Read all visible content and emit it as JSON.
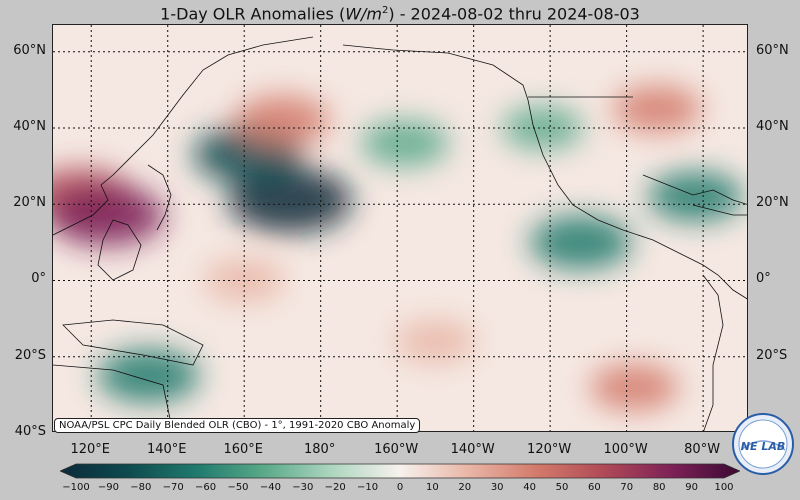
{
  "title": {
    "prefix": "1-Day OLR Anomalies (",
    "unit_var": "W/m",
    "unit_exp": "2",
    "suffix": ") - 2024-08-02 thru 2024-08-03"
  },
  "credit": "NOAA/PSL CPC Daily Blended OLR (CBO) - 1°, 1991-2020 CBO Anomaly",
  "map": {
    "lat_labels": [
      "60°N",
      "40°N",
      "20°N",
      "0°",
      "20°S",
      "40°S"
    ],
    "lat_values": [
      60,
      40,
      20,
      0,
      -20,
      -40
    ],
    "lon_labels": [
      "120°E",
      "140°E",
      "160°E",
      "180°",
      "160°W",
      "140°W",
      "120°W",
      "100°W",
      "80°W"
    ],
    "lon_values": [
      120,
      140,
      160,
      180,
      200,
      220,
      240,
      260,
      280
    ],
    "extent": {
      "lon_min": 110,
      "lon_max": 292,
      "lat_min": -40,
      "lat_max": 67
    },
    "anomalies": [
      {
        "name": "ne-japan",
        "lon": 117,
        "lat": 22,
        "value": 70
      },
      {
        "name": "philippine-sea",
        "lon": 124,
        "lat": 17,
        "value": 80
      },
      {
        "name": "central-n-pacific",
        "lon": 172,
        "lat": 21,
        "value": -90
      },
      {
        "name": "mid-pacific-w",
        "lon": 161,
        "lat": 33,
        "value": -70
      },
      {
        "name": "nw-pacific-north",
        "lon": 170,
        "lat": 42,
        "value": 50
      },
      {
        "name": "gulf-alaska",
        "lon": 202,
        "lat": 36,
        "value": -40
      },
      {
        "name": "e-pacific-itcz",
        "lon": 248,
        "lat": 10,
        "value": -60
      },
      {
        "name": "caribbean",
        "lon": 278,
        "lat": 22,
        "value": -50
      },
      {
        "name": "s-pacific-west",
        "lon": 135,
        "lat": -25,
        "value": -60
      },
      {
        "name": "s-pacific-east",
        "lon": 262,
        "lat": -28,
        "value": 40
      },
      {
        "name": "equatorial-w",
        "lon": 160,
        "lat": 0,
        "value": 30
      },
      {
        "name": "n-america",
        "lon": 268,
        "lat": 45,
        "value": 40
      },
      {
        "name": "south-central",
        "lon": 210,
        "lat": -16,
        "value": 30
      },
      {
        "name": "w-coast-na",
        "lon": 238,
        "lat": 40,
        "value": -30
      }
    ]
  },
  "colorbar": {
    "ticks": [
      "−100",
      "−90",
      "−80",
      "−70",
      "−60",
      "−50",
      "−40",
      "−30",
      "−20",
      "−10",
      "0",
      "10",
      "20",
      "30",
      "40",
      "50",
      "60",
      "70",
      "80",
      "90",
      "100"
    ],
    "min": -100,
    "max": 100,
    "colors": {
      "-100": "#0b2a3a",
      "-80": "#0e4a4f",
      "-60": "#1f7a6d",
      "-40": "#5aa989",
      "-20": "#aed6bf",
      "0": "#f7f1ed",
      "20": "#e9b6a7",
      "40": "#d37b6b",
      "60": "#b04a57",
      "80": "#7d2157",
      "100": "#3b0a33"
    }
  },
  "logo": {
    "text": "NE LAB"
  }
}
